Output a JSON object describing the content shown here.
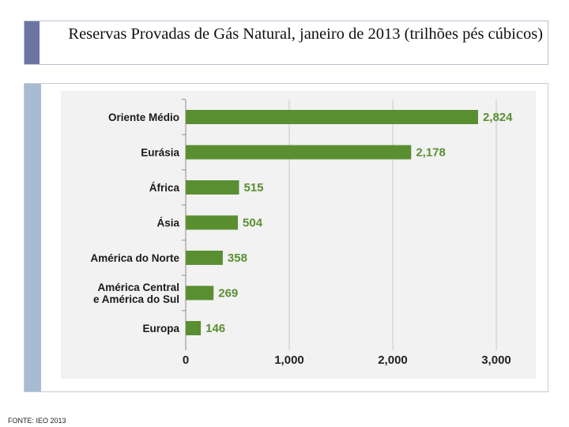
{
  "title": "Reservas Provadas de Gás Natural, janeiro de 2013 (trilhões pés cúbicos)",
  "source": "FONTE: IEO 2013",
  "chart_data": {
    "type": "bar",
    "orientation": "horizontal",
    "categories": [
      [
        "Oriente Médio"
      ],
      [
        "Eurásia"
      ],
      [
        "África"
      ],
      [
        "Ásia"
      ],
      [
        "América do Norte"
      ],
      [
        "América Central",
        "e América do Sul"
      ],
      [
        "Europa"
      ]
    ],
    "values": [
      2824,
      2178,
      515,
      504,
      358,
      269,
      146
    ],
    "value_labels": [
      "2,824",
      "2,178",
      "515",
      "504",
      "358",
      "269",
      "146"
    ],
    "xlim": [
      0,
      3000
    ],
    "xticks": [
      0,
      1000,
      2000,
      3000
    ],
    "xtick_labels": [
      "0",
      "1,000",
      "2,000",
      "3,000"
    ],
    "gridlines": true,
    "bar_color": "#5a8f31",
    "label_color": "#5a8f31",
    "grid_color": "#c8c8c8"
  }
}
